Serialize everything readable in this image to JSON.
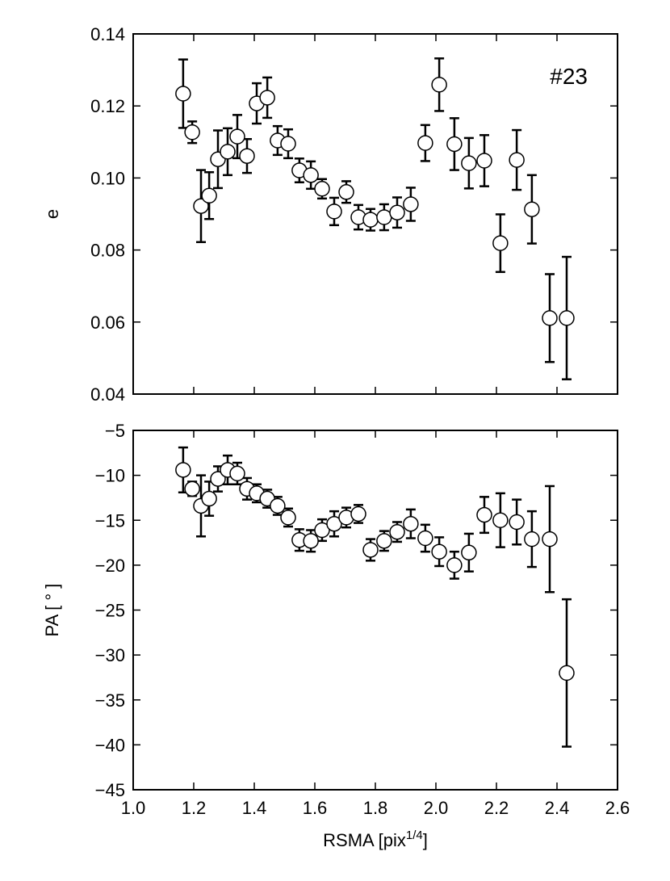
{
  "chart_data": [
    {
      "type": "errorbar-scatter",
      "ylabel": "e",
      "annotation": "#23",
      "xlim": [
        1.0,
        2.6
      ],
      "xticks": [
        1.0,
        1.2,
        1.4,
        1.6,
        1.8,
        2.0,
        2.2,
        2.4,
        2.6
      ],
      "ylim": [
        0.04,
        0.14
      ],
      "yticks": [
        0.04,
        0.06,
        0.08,
        {
          "value": 0.1,
          "label": "0.10"
        },
        0.12,
        0.14
      ],
      "series": [
        {
          "color": "#000000",
          "x": [
            1.165,
            1.195,
            1.224,
            1.251,
            1.28,
            1.312,
            1.344,
            1.376,
            1.408,
            1.443,
            1.477,
            1.512,
            1.549,
            1.587,
            1.624,
            1.664,
            1.704,
            1.744,
            1.784,
            1.829,
            1.872,
            1.917,
            1.965,
            2.011,
            2.061,
            2.109,
            2.16,
            2.213,
            2.267,
            2.317,
            2.376,
            2.432
          ],
          "values": [
            0.1234,
            0.1127,
            0.0922,
            0.0951,
            0.1052,
            0.1073,
            0.1115,
            0.1061,
            0.1207,
            0.1223,
            0.1104,
            0.1095,
            0.1021,
            0.1008,
            0.097,
            0.0907,
            0.0961,
            0.0891,
            0.0884,
            0.0891,
            0.0904,
            0.0927,
            0.1097,
            0.1259,
            0.1094,
            0.1041,
            0.1048,
            0.0819,
            0.105,
            0.0913,
            0.0611,
            0.0611
          ],
          "errors": [
            0.0095,
            0.003,
            0.01,
            0.0065,
            0.008,
            0.0065,
            0.006,
            0.0047,
            0.0056,
            0.0056,
            0.004,
            0.004,
            0.0033,
            0.0038,
            0.0027,
            0.0038,
            0.003,
            0.0034,
            0.003,
            0.0036,
            0.0042,
            0.0046,
            0.005,
            0.0073,
            0.0072,
            0.007,
            0.0071,
            0.008,
            0.0083,
            0.0095,
            0.0122,
            0.017
          ]
        }
      ]
    },
    {
      "type": "errorbar-scatter",
      "ylabel": "PA [ ° ]",
      "xlabel": {
        "text": "RSMA [pix",
        "sup": "1/4",
        "end": "]"
      },
      "xlim": [
        1.0,
        2.6
      ],
      "xticks": [
        {
          "value": 1.0,
          "label": "1.0"
        },
        1.2,
        1.4,
        1.6,
        1.8,
        {
          "value": 2.0,
          "label": "2.0"
        },
        2.2,
        2.4,
        2.6
      ],
      "ylim": [
        -45,
        -5
      ],
      "yticks": [
        {
          "value": -45,
          "label": "−45"
        },
        {
          "value": -40,
          "label": "−40"
        },
        {
          "value": -35,
          "label": "−35"
        },
        {
          "value": -30,
          "label": "−30"
        },
        {
          "value": -25,
          "label": "−25"
        },
        {
          "value": -20,
          "label": "−20"
        },
        {
          "value": -15,
          "label": "−15"
        },
        {
          "value": -10,
          "label": "−10"
        },
        {
          "value": -5,
          "label": "−5"
        }
      ],
      "series": [
        {
          "color": "#000000",
          "x": [
            1.165,
            1.195,
            1.224,
            1.251,
            1.28,
            1.312,
            1.344,
            1.376,
            1.408,
            1.443,
            1.477,
            1.512,
            1.549,
            1.587,
            1.624,
            1.664,
            1.704,
            1.744,
            1.784,
            1.829,
            1.872,
            1.917,
            1.965,
            2.011,
            2.061,
            2.109,
            2.16,
            2.213,
            2.267,
            2.317,
            2.376,
            2.432
          ],
          "values": [
            -9.4,
            -11.5,
            -13.4,
            -12.6,
            -10.4,
            -9.4,
            -9.8,
            -11.5,
            -12.0,
            -12.6,
            -13.4,
            -14.7,
            -17.2,
            -17.3,
            -16.1,
            -15.4,
            -14.7,
            -14.3,
            -18.3,
            -17.3,
            -16.3,
            -15.4,
            -17.0,
            -18.5,
            -20.0,
            -18.6,
            -14.4,
            -15.0,
            -15.2,
            -17.1,
            -17.1,
            -32.0
          ],
          "errors": [
            2.5,
            0.8,
            3.4,
            1.9,
            1.4,
            1.6,
            1.2,
            1.2,
            1.0,
            1.0,
            1.0,
            1.0,
            1.2,
            1.2,
            1.2,
            1.4,
            1.1,
            1.0,
            1.2,
            1.1,
            1.1,
            1.6,
            1.5,
            1.6,
            1.5,
            2.1,
            2.0,
            3.0,
            2.5,
            3.1,
            5.9,
            8.2
          ]
        }
      ]
    }
  ]
}
